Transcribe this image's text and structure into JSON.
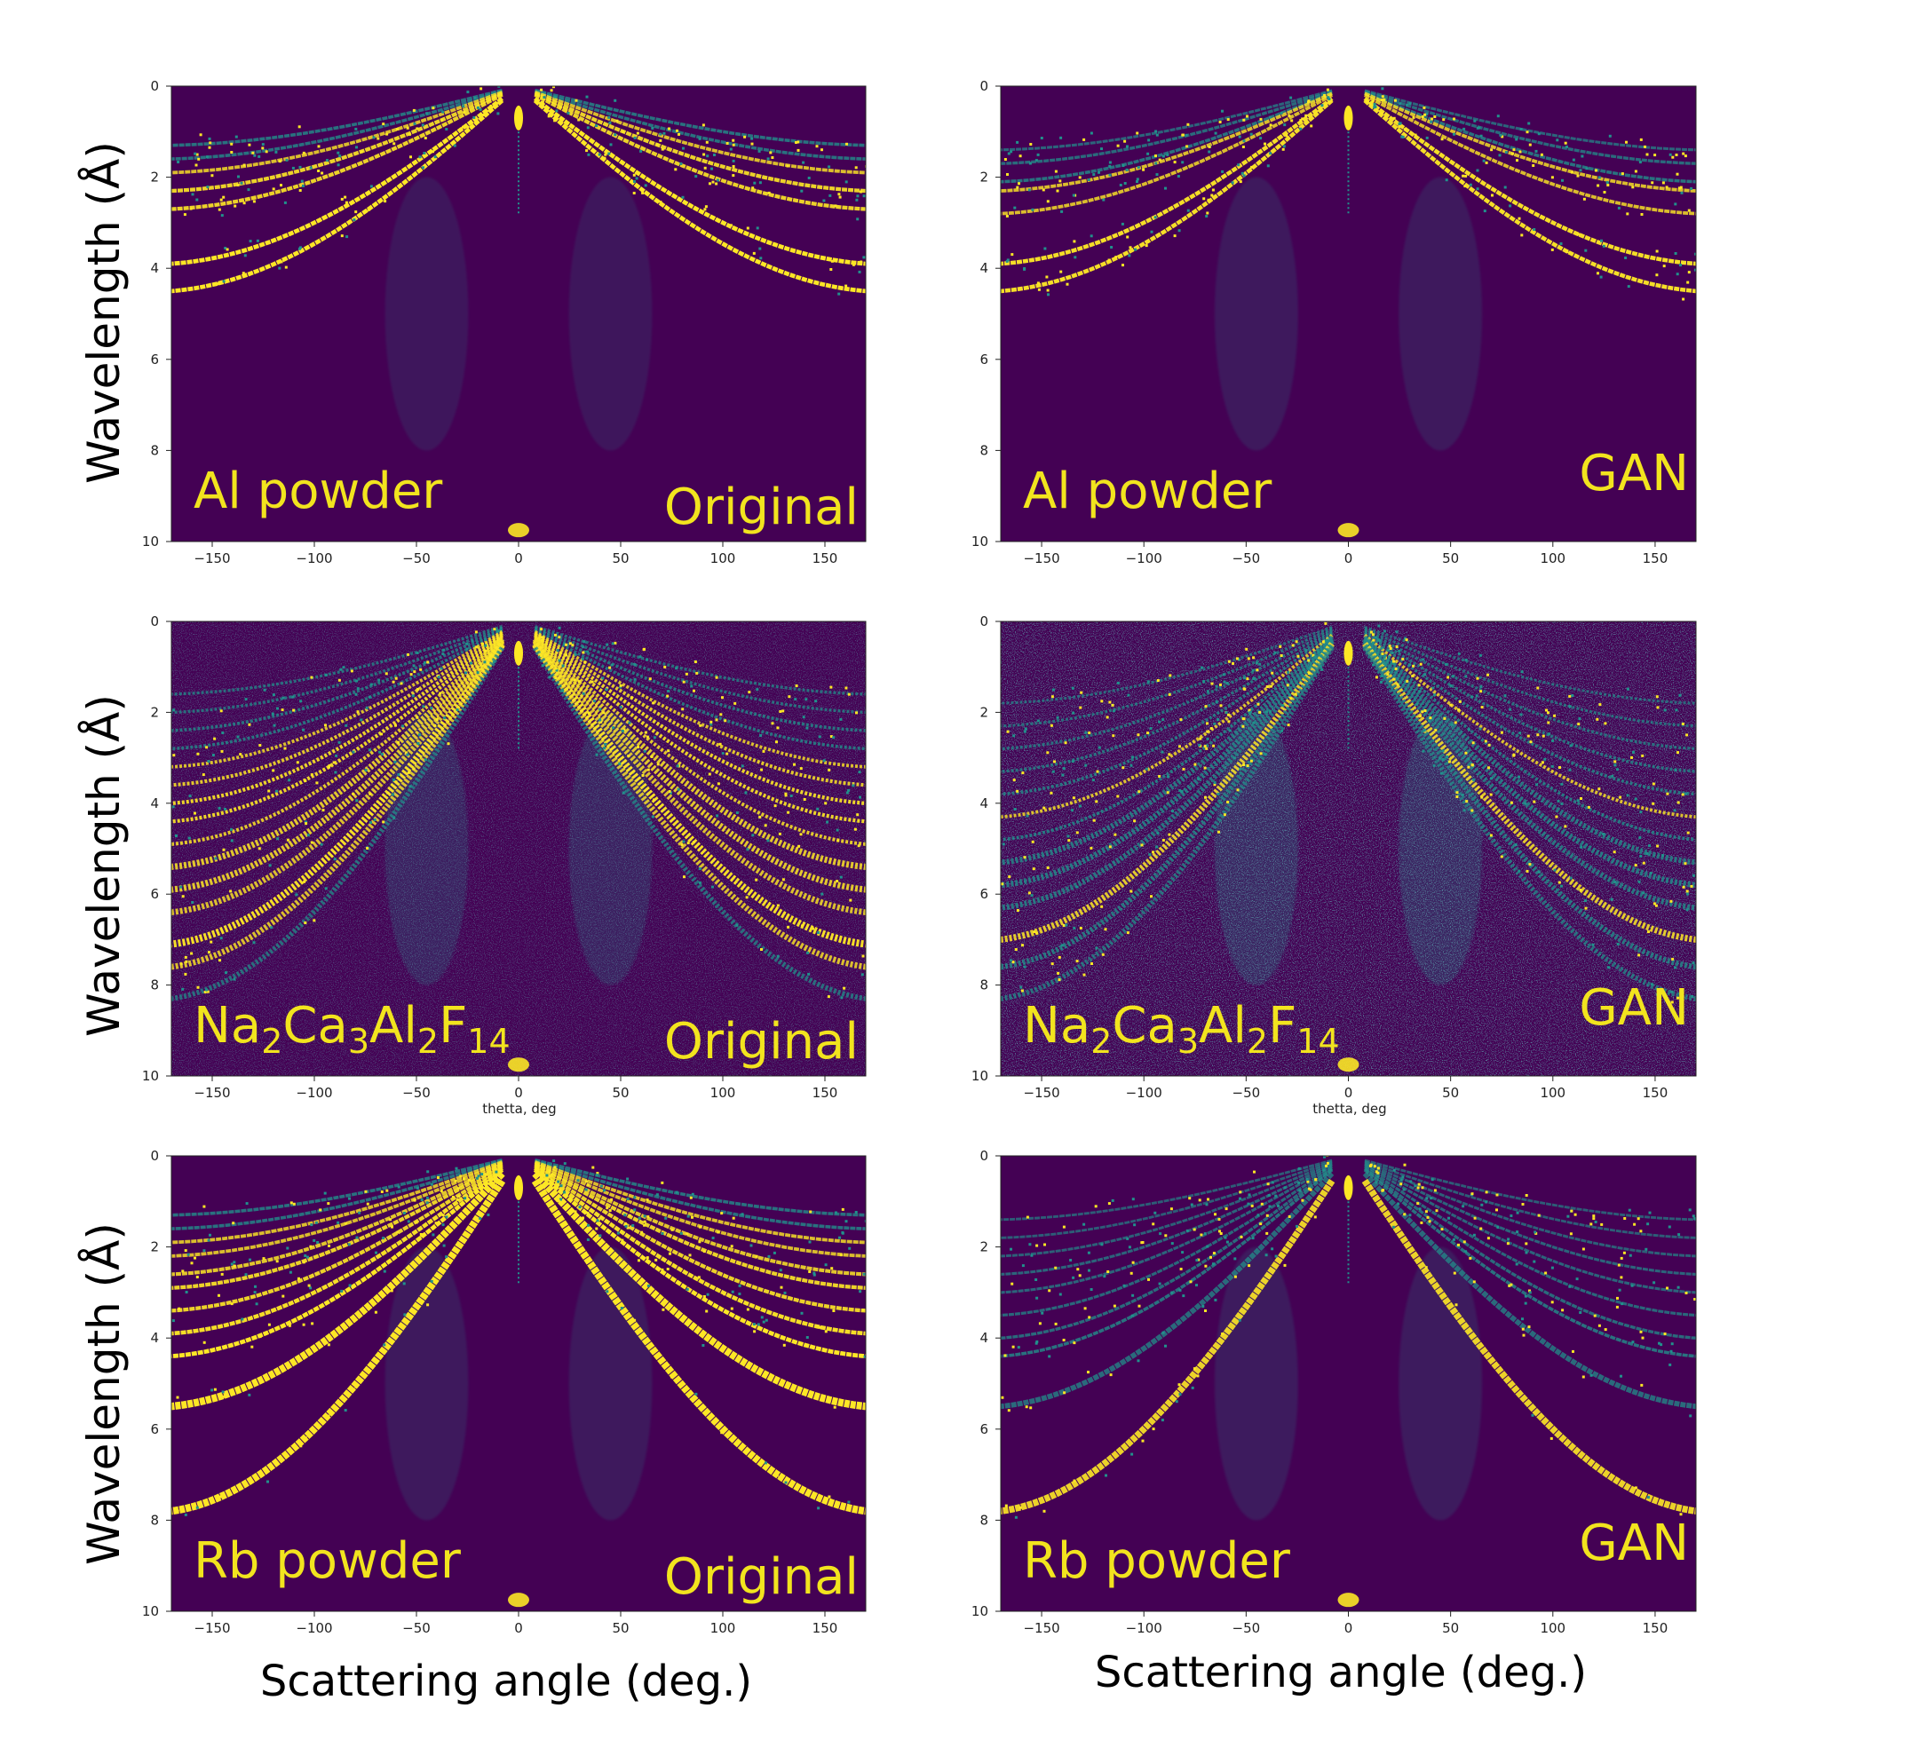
{
  "axis_labels": {
    "ylabel": "Wavelength (Å)",
    "xlabel": "Scattering angle (deg.)",
    "small_xlabel": "thetta, deg"
  },
  "colors": {
    "background": "#440154",
    "mid": "#21918c",
    "high": "#fde725",
    "label": "#f2e41e"
  },
  "chart_data": [
    {
      "type": "heatmap",
      "row": 0,
      "col": 0,
      "sample": "Al powder",
      "version": "Original",
      "xlim": [
        -170,
        170
      ],
      "ylim": [
        0,
        10
      ],
      "y_inverted": true,
      "xticks": [
        -150,
        -100,
        -50,
        0,
        50,
        100,
        150
      ],
      "yticks": [
        0,
        2,
        4,
        6,
        8,
        10
      ],
      "ring_wavelengths_at_edge": [
        1.3,
        1.6,
        1.9,
        2.3,
        2.7,
        3.9,
        4.5
      ],
      "ring_intensity": [
        0.5,
        0.5,
        0.6,
        0.8,
        0.8,
        1.0,
        1.0
      ],
      "noise": 0.0
    },
    {
      "type": "heatmap",
      "row": 0,
      "col": 1,
      "sample": "Al powder",
      "version": "GAN",
      "xlim": [
        -170,
        170
      ],
      "ylim": [
        0,
        10
      ],
      "y_inverted": true,
      "xticks": [
        -150,
        -100,
        -50,
        0,
        50,
        100,
        150
      ],
      "yticks": [
        0,
        2,
        4,
        6,
        8,
        10
      ],
      "ring_wavelengths_at_edge": [
        1.4,
        1.7,
        2.1,
        2.3,
        2.8,
        3.9,
        4.5
      ],
      "ring_intensity": [
        0.3,
        0.4,
        0.5,
        0.6,
        0.6,
        0.9,
        0.9
      ],
      "noise": 0.05
    },
    {
      "type": "heatmap",
      "row": 1,
      "col": 0,
      "sample": "Na2Ca3Al2F14",
      "sample_parts": [
        "Na",
        "2",
        "Ca",
        "3",
        "Al",
        "2",
        "F",
        "14"
      ],
      "version": "Original",
      "xlim": [
        -170,
        170
      ],
      "ylim": [
        0,
        10
      ],
      "y_inverted": true,
      "xticks": [
        -150,
        -100,
        -50,
        0,
        50,
        100,
        150
      ],
      "yticks": [
        0,
        2,
        4,
        6,
        8,
        10
      ],
      "ring_wavelengths_at_edge": [
        1.6,
        2.0,
        2.4,
        2.8,
        3.2,
        3.6,
        4.0,
        4.4,
        4.9,
        5.4,
        5.9,
        6.4,
        7.1,
        7.6,
        8.3
      ],
      "ring_intensity": [
        0.4,
        0.4,
        0.5,
        0.5,
        0.6,
        0.7,
        0.8,
        0.8,
        0.7,
        0.7,
        0.7,
        0.6,
        0.9,
        0.6,
        0.4
      ],
      "noise": 0.15
    },
    {
      "type": "heatmap",
      "row": 1,
      "col": 1,
      "sample": "Na2Ca3Al2F14",
      "sample_parts": [
        "Na",
        "2",
        "Ca",
        "3",
        "Al",
        "2",
        "F",
        "14"
      ],
      "version": "GAN",
      "xlim": [
        -170,
        170
      ],
      "ylim": [
        0,
        10
      ],
      "y_inverted": true,
      "xticks": [
        -150,
        -100,
        -50,
        0,
        50,
        100,
        150
      ],
      "yticks": [
        0,
        2,
        4,
        6,
        8,
        10
      ],
      "ring_wavelengths_at_edge": [
        1.8,
        2.3,
        2.8,
        3.3,
        3.8,
        4.3,
        4.8,
        5.3,
        5.8,
        6.3,
        7.0,
        7.6,
        8.3
      ],
      "ring_intensity": [
        0.3,
        0.35,
        0.4,
        0.45,
        0.5,
        0.6,
        0.55,
        0.5,
        0.55,
        0.5,
        0.7,
        0.5,
        0.4
      ],
      "noise": 0.25
    },
    {
      "type": "heatmap",
      "row": 2,
      "col": 0,
      "sample": "Rb powder",
      "version": "Original",
      "xlim": [
        -170,
        170
      ],
      "ylim": [
        0,
        10
      ],
      "y_inverted": true,
      "xticks": [
        -150,
        -100,
        -50,
        0,
        50,
        100,
        150
      ],
      "yticks": [
        0,
        2,
        4,
        6,
        8,
        10
      ],
      "ring_wavelengths_at_edge": [
        1.3,
        1.6,
        1.9,
        2.2,
        2.6,
        2.9,
        3.4,
        3.9,
        4.4,
        5.5,
        7.8
      ],
      "ring_intensity": [
        0.5,
        0.5,
        0.6,
        0.6,
        0.7,
        0.8,
        0.8,
        0.9,
        1.0,
        1.0,
        1.0
      ],
      "noise": 0.05
    },
    {
      "type": "heatmap",
      "row": 2,
      "col": 1,
      "sample": "Rb powder",
      "version": "GAN",
      "xlim": [
        -170,
        170
      ],
      "ylim": [
        0,
        10
      ],
      "y_inverted": true,
      "xticks": [
        -150,
        -100,
        -50,
        0,
        50,
        100,
        150
      ],
      "yticks": [
        0,
        2,
        4,
        6,
        8,
        10
      ],
      "ring_wavelengths_at_edge": [
        1.4,
        1.8,
        2.2,
        2.6,
        3.0,
        3.5,
        4.0,
        4.4,
        5.5,
        7.8
      ],
      "ring_intensity": [
        0.2,
        0.2,
        0.25,
        0.3,
        0.3,
        0.35,
        0.4,
        0.5,
        0.4,
        0.8
      ],
      "noise": 0.08
    }
  ]
}
